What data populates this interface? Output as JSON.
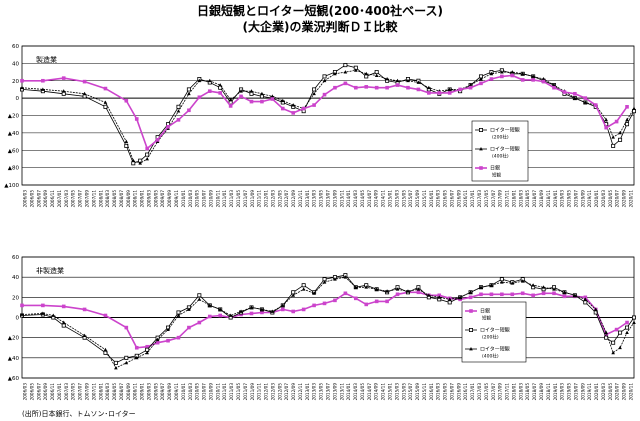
{
  "title_line1": "日銀短観とロイター短観(200･400社ベース)",
  "title_line2": "(大企業)の業況判断ＤＩ比較",
  "source_note": "(出所)日本銀行、トムソン･ロイター",
  "colors": {
    "reuters": "#000000",
    "boj": "#cc44cc",
    "grid": "#000000"
  },
  "chart_data": [
    {
      "type": "line",
      "panel_label": "製造業",
      "ylim": [
        -100,
        60
      ],
      "yticks": [
        60,
        40,
        20,
        0,
        -20,
        -40,
        -60,
        -80,
        -100
      ],
      "ytick_labels": [
        "60",
        "40",
        "20",
        "0",
        "▲20",
        "▲40",
        "▲60",
        "▲80",
        "▲100"
      ],
      "xlim": [
        2006.25,
        2020.917
      ],
      "xticks": [
        "2006/03",
        "2006/05",
        "2006/07",
        "2006/09",
        "2006/11",
        "2007/01",
        "2007/03",
        "2007/05",
        "2007/07",
        "2007/09",
        "2007/11",
        "2008/01",
        "2008/03",
        "2008/05",
        "2008/07",
        "2008/09",
        "2008/11",
        "2009/01",
        "2009/03",
        "2009/05",
        "2009/07",
        "2009/09",
        "2009/11",
        "2010/01",
        "2010/03",
        "2010/05",
        "2010/07",
        "2010/09",
        "2010/11",
        "2011/01",
        "2011/03",
        "2011/05",
        "2011/07",
        "2011/09",
        "2011/11",
        "2012/01",
        "2012/03",
        "2012/05",
        "2012/07",
        "2012/09",
        "2012/11",
        "2013/01",
        "2013/03",
        "2013/05",
        "2013/07",
        "2013/09",
        "2013/11",
        "2014/01",
        "2014/03",
        "2014/05",
        "2014/07",
        "2014/09",
        "2014/11",
        "2015/01",
        "2015/03",
        "2015/05",
        "2015/07",
        "2015/09",
        "2015/11",
        "2016/01",
        "2016/03",
        "2016/05",
        "2016/07",
        "2016/09",
        "2016/11",
        "2017/01",
        "2017/03",
        "2017/05",
        "2017/07",
        "2017/09",
        "2017/11",
        "2018/01",
        "2018/03",
        "2018/05",
        "2018/07",
        "2018/09",
        "2018/11",
        "2019/01",
        "2019/03",
        "2019/05",
        "2019/07",
        "2019/09",
        "2019/11",
        "2020/01",
        "2020/03",
        "2020/05",
        "2020/07",
        "2020/09",
        "2020/11"
      ],
      "series": [
        {
          "name": "ロイター短観 (200社)",
          "marker": "open-square",
          "x": [
            2006.25,
            2006.75,
            2007.25,
            2007.75,
            2008.25,
            2008.75,
            2008.917,
            2009.083,
            2009.25,
            2009.5,
            2009.75,
            2010.0,
            2010.25,
            2010.5,
            2010.75,
            2011.0,
            2011.25,
            2011.5,
            2011.75,
            2012.0,
            2012.25,
            2012.5,
            2012.75,
            2013.0,
            2013.25,
            2013.5,
            2013.75,
            2014.0,
            2014.25,
            2014.5,
            2014.75,
            2015.0,
            2015.25,
            2015.5,
            2015.75,
            2016.0,
            2016.25,
            2016.5,
            2016.75,
            2017.0,
            2017.25,
            2017.5,
            2017.75,
            2018.0,
            2018.25,
            2018.5,
            2018.75,
            2019.0,
            2019.25,
            2019.5,
            2019.75,
            2020.0,
            2020.25,
            2020.417,
            2020.583,
            2020.75,
            2020.917
          ],
          "y": [
            10,
            8,
            5,
            2,
            -10,
            -55,
            -75,
            -72,
            -65,
            -45,
            -30,
            -10,
            10,
            22,
            18,
            12,
            -5,
            10,
            5,
            2,
            0,
            -5,
            -10,
            -15,
            10,
            25,
            30,
            38,
            35,
            25,
            30,
            20,
            18,
            22,
            20,
            10,
            5,
            10,
            8,
            15,
            25,
            30,
            32,
            28,
            28,
            25,
            20,
            15,
            5,
            0,
            -5,
            -10,
            -30,
            -55,
            -48,
            -30,
            -15
          ]
        },
        {
          "name": "ロイター短観 (400社)",
          "marker": "filled-triangle",
          "x": [
            2006.25,
            2006.75,
            2007.25,
            2007.75,
            2008.25,
            2008.75,
            2008.917,
            2009.083,
            2009.25,
            2009.5,
            2009.75,
            2010.0,
            2010.25,
            2010.5,
            2010.75,
            2011.0,
            2011.25,
            2011.5,
            2011.75,
            2012.0,
            2012.25,
            2012.5,
            2012.75,
            2013.0,
            2013.25,
            2013.5,
            2013.75,
            2014.0,
            2014.25,
            2014.5,
            2014.75,
            2015.0,
            2015.25,
            2015.5,
            2015.75,
            2016.0,
            2016.25,
            2016.5,
            2016.75,
            2017.0,
            2017.25,
            2017.5,
            2017.75,
            2018.0,
            2018.25,
            2018.5,
            2018.75,
            2019.0,
            2019.25,
            2019.5,
            2019.75,
            2020.0,
            2020.25,
            2020.417,
            2020.583,
            2020.75,
            2020.917
          ],
          "y": [
            12,
            10,
            8,
            5,
            -5,
            -50,
            -72,
            -75,
            -70,
            -50,
            -35,
            -15,
            5,
            20,
            20,
            15,
            -2,
            8,
            8,
            5,
            2,
            -3,
            -8,
            -12,
            5,
            20,
            28,
            30,
            32,
            28,
            26,
            22,
            20,
            20,
            18,
            12,
            8,
            10,
            10,
            15,
            22,
            28,
            30,
            30,
            28,
            25,
            22,
            15,
            8,
            0,
            -5,
            -8,
            -25,
            -45,
            -40,
            -25,
            -12
          ]
        },
        {
          "name": "日銀 短観",
          "marker": "filled-square",
          "x": [
            2006.25,
            2006.75,
            2007.25,
            2007.75,
            2008.25,
            2008.75,
            2009.0,
            2009.25,
            2009.5,
            2009.75,
            2010.0,
            2010.25,
            2010.5,
            2010.75,
            2011.0,
            2011.25,
            2011.5,
            2011.75,
            2012.0,
            2012.25,
            2012.5,
            2012.75,
            2013.0,
            2013.25,
            2013.5,
            2013.75,
            2014.0,
            2014.25,
            2014.5,
            2014.75,
            2015.0,
            2015.25,
            2015.5,
            2015.75,
            2016.0,
            2016.25,
            2016.5,
            2016.75,
            2017.0,
            2017.25,
            2017.5,
            2017.75,
            2018.0,
            2018.25,
            2018.5,
            2018.75,
            2019.0,
            2019.25,
            2019.5,
            2019.75,
            2020.0,
            2020.25,
            2020.5,
            2020.75
          ],
          "y": [
            20,
            20,
            23,
            19,
            11,
            -3,
            -24,
            -58,
            -48,
            -33,
            -25,
            -14,
            1,
            8,
            6,
            -9,
            2,
            -4,
            -4,
            -1,
            -12,
            -17,
            -12,
            -8,
            4,
            12,
            17,
            12,
            13,
            12,
            12,
            15,
            12,
            10,
            6,
            6,
            6,
            10,
            12,
            17,
            22,
            25,
            26,
            21,
            21,
            19,
            12,
            7,
            5,
            0,
            -8,
            -34,
            -27,
            -10
          ]
        }
      ]
    },
    {
      "type": "line",
      "panel_label": "非製造業",
      "ylim": [
        -60,
        60
      ],
      "yticks": [
        60,
        40,
        20,
        0,
        -20,
        -40,
        -60
      ],
      "ytick_labels": [
        "60",
        "40",
        "20",
        "0",
        "▲20",
        "▲40",
        "▲60"
      ],
      "xlim": [
        2006.25,
        2020.917
      ],
      "xticks": [
        "2006/03",
        "2006/05",
        "2006/07",
        "2006/09",
        "2006/11",
        "2007/01",
        "2007/03",
        "2007/05",
        "2007/07",
        "2007/09",
        "2007/11",
        "2008/01",
        "2008/03",
        "2008/05",
        "2008/07",
        "2008/09",
        "2008/11",
        "2009/01",
        "2009/03",
        "2009/05",
        "2009/07",
        "2009/09",
        "2009/11",
        "2010/01",
        "2010/03",
        "2010/05",
        "2010/07",
        "2010/09",
        "2010/11",
        "2011/01",
        "2011/03",
        "2011/05",
        "2011/07",
        "2011/09",
        "2011/11",
        "2012/01",
        "2012/03",
        "2012/05",
        "2012/07",
        "2012/09",
        "2012/11",
        "2013/01",
        "2013/03",
        "2013/05",
        "2013/07",
        "2013/09",
        "2013/11",
        "2014/01",
        "2014/03",
        "2014/05",
        "2014/07",
        "2014/09",
        "2014/11",
        "2015/01",
        "2015/03",
        "2015/05",
        "2015/07",
        "2015/09",
        "2015/11",
        "2016/01",
        "2016/03",
        "2016/05",
        "2016/07",
        "2016/09",
        "2016/11",
        "2017/01",
        "2017/03",
        "2017/05",
        "2017/07",
        "2017/09",
        "2017/11",
        "2018/01",
        "2018/03",
        "2018/05",
        "2018/07",
        "2018/09",
        "2018/11",
        "2019/01",
        "2019/03",
        "2019/05",
        "2019/07",
        "2019/09",
        "2019/11",
        "2020/01",
        "2020/03",
        "2020/05",
        "2020/07",
        "2020/09",
        "2020/11"
      ],
      "series": [
        {
          "name": "日銀 短観",
          "marker": "filled-square",
          "x": [
            2006.25,
            2006.75,
            2007.25,
            2007.75,
            2008.25,
            2008.75,
            2009.0,
            2009.25,
            2009.5,
            2009.75,
            2010.0,
            2010.25,
            2010.5,
            2010.75,
            2011.0,
            2011.25,
            2011.5,
            2011.75,
            2012.0,
            2012.25,
            2012.5,
            2012.75,
            2013.0,
            2013.25,
            2013.5,
            2013.75,
            2014.0,
            2014.25,
            2014.5,
            2014.75,
            2015.0,
            2015.25,
            2015.5,
            2015.75,
            2016.0,
            2016.25,
            2016.5,
            2016.75,
            2017.0,
            2017.25,
            2017.5,
            2017.75,
            2018.0,
            2018.25,
            2018.5,
            2018.75,
            2019.0,
            2019.25,
            2019.5,
            2019.75,
            2020.0,
            2020.25,
            2020.5,
            2020.75
          ],
          "y": [
            12,
            12,
            11,
            8,
            2,
            -10,
            -30,
            -29,
            -25,
            -23,
            -20,
            -10,
            -5,
            1,
            2,
            0,
            3,
            4,
            5,
            5,
            8,
            6,
            8,
            12,
            14,
            17,
            24,
            19,
            13,
            16,
            16,
            23,
            25,
            25,
            22,
            22,
            19,
            18,
            20,
            23,
            23,
            23,
            23,
            24,
            22,
            24,
            24,
            21,
            21,
            20,
            8,
            -17,
            -12,
            -5
          ]
        },
        {
          "name": "ロイター短観 (200社)",
          "marker": "open-square",
          "x": [
            2006.25,
            2006.75,
            2007.0,
            2007.25,
            2007.75,
            2008.25,
            2008.5,
            2008.75,
            2009.0,
            2009.25,
            2009.5,
            2009.75,
            2010.0,
            2010.25,
            2010.5,
            2010.75,
            2011.0,
            2011.25,
            2011.5,
            2011.75,
            2012.0,
            2012.25,
            2012.5,
            2012.75,
            2013.0,
            2013.25,
            2013.5,
            2013.75,
            2014.0,
            2014.25,
            2014.5,
            2014.75,
            2015.0,
            2015.25,
            2015.5,
            2015.75,
            2016.0,
            2016.25,
            2016.5,
            2016.75,
            2017.0,
            2017.25,
            2017.5,
            2017.75,
            2018.0,
            2018.25,
            2018.5,
            2018.75,
            2019.0,
            2019.25,
            2019.5,
            2019.75,
            2020.0,
            2020.25,
            2020.417,
            2020.583,
            2020.75,
            2020.917
          ],
          "y": [
            2,
            3,
            0,
            -8,
            -20,
            -35,
            -45,
            -40,
            -38,
            -32,
            -20,
            -10,
            5,
            10,
            22,
            12,
            8,
            0,
            5,
            10,
            8,
            5,
            12,
            25,
            32,
            25,
            38,
            40,
            42,
            30,
            32,
            28,
            25,
            30,
            25,
            30,
            20,
            18,
            15,
            20,
            25,
            30,
            32,
            38,
            35,
            38,
            30,
            28,
            30,
            25,
            22,
            15,
            5,
            -20,
            -25,
            -15,
            -10,
            0
          ]
        },
        {
          "name": "ロイター短観 (400社)",
          "marker": "filled-triangle",
          "x": [
            2006.25,
            2006.75,
            2007.0,
            2007.25,
            2007.75,
            2008.25,
            2008.5,
            2008.75,
            2009.0,
            2009.25,
            2009.5,
            2009.75,
            2010.0,
            2010.25,
            2010.5,
            2010.75,
            2011.0,
            2011.25,
            2011.5,
            2011.75,
            2012.0,
            2012.25,
            2012.5,
            2012.75,
            2013.0,
            2013.25,
            2013.5,
            2013.75,
            2014.0,
            2014.25,
            2014.5,
            2014.75,
            2015.0,
            2015.25,
            2015.5,
            2015.75,
            2016.0,
            2016.25,
            2016.5,
            2016.75,
            2017.0,
            2017.25,
            2017.5,
            2017.75,
            2018.0,
            2018.25,
            2018.5,
            2018.75,
            2019.0,
            2019.25,
            2019.5,
            2019.75,
            2020.0,
            2020.25,
            2020.417,
            2020.583,
            2020.75,
            2020.917
          ],
          "y": [
            3,
            4,
            2,
            -5,
            -18,
            -32,
            -50,
            -45,
            -40,
            -35,
            -22,
            -12,
            2,
            8,
            18,
            12,
            8,
            2,
            6,
            10,
            8,
            6,
            12,
            22,
            28,
            24,
            35,
            38,
            40,
            30,
            30,
            28,
            26,
            28,
            26,
            28,
            22,
            20,
            18,
            20,
            25,
            30,
            32,
            35,
            34,
            36,
            32,
            30,
            28,
            25,
            22,
            18,
            8,
            -15,
            -35,
            -30,
            -15,
            -5
          ]
        }
      ]
    }
  ]
}
